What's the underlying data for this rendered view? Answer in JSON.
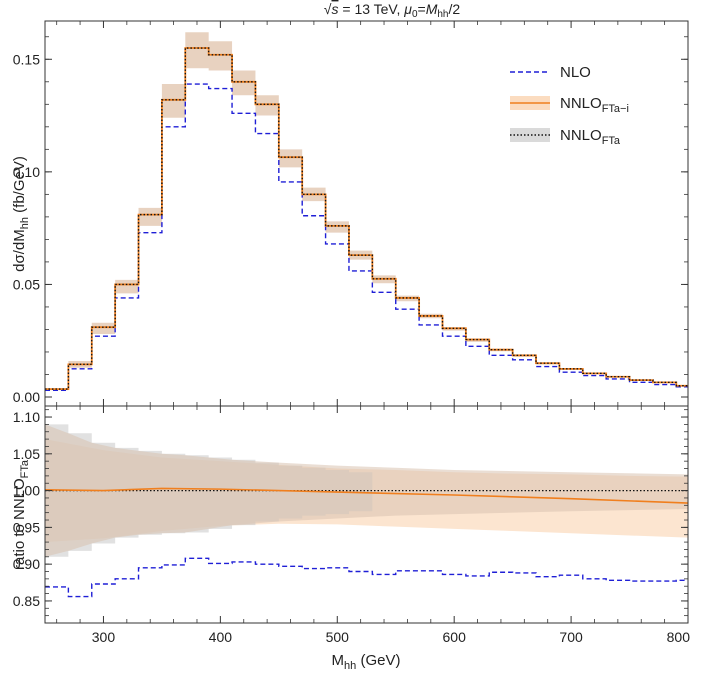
{
  "chart_data": [
    {
      "type": "line",
      "panel": "main",
      "title_parts": {
        "prefix": "√",
        "s": "s",
        "eq": " = 13 TeV, ",
        "mu": "μ",
        "mu_sub": "0",
        "eq2": "=",
        "M": "M",
        "M_sub": "hh",
        "rest": "/2"
      },
      "xlabel": "",
      "ylabel_parts": {
        "main": "dσ/dM",
        "sub": "hh",
        "rest": " (fb/GeV)"
      },
      "xlim": [
        250,
        800
      ],
      "ylim": [
        -0.004,
        0.167
      ],
      "y_ticks": [
        "0.00",
        "0.05",
        "0.10",
        "0.15"
      ],
      "bin_edges": [
        250,
        270,
        290,
        310,
        330,
        350,
        370,
        390,
        410,
        430,
        450,
        470,
        490,
        510,
        530,
        550,
        570,
        590,
        610,
        630,
        650,
        670,
        690,
        710,
        730,
        750,
        770,
        790,
        800
      ],
      "series": [
        {
          "name": "NLO",
          "values": [
            0.003,
            0.0125,
            0.027,
            0.044,
            0.073,
            0.12,
            0.139,
            0.137,
            0.126,
            0.117,
            0.0955,
            0.0805,
            0.068,
            0.056,
            0.0465,
            0.039,
            0.032,
            0.027,
            0.0225,
            0.0185,
            0.0165,
            0.0135,
            0.011,
            0.0095,
            0.008,
            0.0065,
            0.0055,
            0.0045
          ]
        },
        {
          "name": "NNLO_FTa-i",
          "values": [
            0.0035,
            0.0145,
            0.031,
            0.05,
            0.081,
            0.132,
            0.155,
            0.152,
            0.14,
            0.13,
            0.1065,
            0.09,
            0.076,
            0.063,
            0.0525,
            0.044,
            0.036,
            0.0305,
            0.0255,
            0.021,
            0.0185,
            0.015,
            0.0125,
            0.0105,
            0.009,
            0.0075,
            0.0065,
            0.005
          ],
          "band_lo": [
            0.003,
            0.013,
            0.028,
            0.046,
            0.076,
            0.124,
            0.146,
            0.145,
            0.134,
            0.125,
            0.102,
            0.087,
            0.073,
            0.061,
            0.0505,
            0.0425,
            0.035,
            0.0295,
            0.0245,
            0.0203,
            0.0178,
            0.0145,
            0.012,
            0.0101,
            0.0087,
            0.0072,
            0.0062,
            0.0048
          ],
          "band_hi": [
            0.004,
            0.016,
            0.033,
            0.052,
            0.084,
            0.139,
            0.162,
            0.158,
            0.145,
            0.134,
            0.11,
            0.093,
            0.078,
            0.065,
            0.054,
            0.045,
            0.037,
            0.031,
            0.026,
            0.0215,
            0.019,
            0.0155,
            0.0128,
            0.0108,
            0.0092,
            0.0077,
            0.0067,
            0.0052
          ]
        },
        {
          "name": "NNLO_FTa",
          "values": [
            0.0035,
            0.0145,
            0.031,
            0.05,
            0.081,
            0.132,
            0.155,
            0.152,
            0.14,
            0.13,
            0.1065,
            0.09,
            0.076,
            0.063,
            0.0525,
            0.044,
            0.036,
            0.0305,
            0.0255,
            0.021,
            0.0185,
            0.015,
            0.0125,
            0.0105,
            0.009,
            0.0075,
            0.0065,
            0.005
          ]
        }
      ],
      "legend": {
        "placement": "top-right",
        "entries": [
          {
            "label": "NLO",
            "sub": "",
            "color": "#1f1fd6",
            "style": "dashed"
          },
          {
            "label": "NNLO",
            "sub": "FTa−i",
            "color": "#f07f1e",
            "style": "solid-band",
            "band_color": "#fbdcc0"
          },
          {
            "label": "NNLO",
            "sub": "FTa",
            "color": "#111111",
            "style": "dotted-band",
            "band_color": "#dadada"
          }
        ]
      }
    },
    {
      "type": "line",
      "panel": "ratio",
      "xlabel_parts": {
        "main": "M",
        "sub": "hh",
        "rest": " (GeV)"
      },
      "ylabel_parts": {
        "main": "ratio to NNLO",
        "sub": "FTa",
        "rest": ""
      },
      "xlim": [
        250,
        800
      ],
      "ylim": [
        0.82,
        1.115
      ],
      "x_ticks": [
        "300",
        "400",
        "500",
        "600",
        "700",
        "800"
      ],
      "y_ticks": [
        "0.85",
        "0.90",
        "0.95",
        "1.00",
        "1.05",
        "1.10"
      ],
      "ratio_nlo_edges": [
        250,
        270,
        290,
        310,
        330,
        350,
        370,
        390,
        410,
        430,
        450,
        470,
        490,
        510,
        530,
        550,
        570,
        590,
        610,
        630,
        650,
        670,
        690,
        710,
        730,
        750,
        770,
        790,
        800
      ],
      "ratio_nlo": [
        0.869,
        0.856,
        0.873,
        0.88,
        0.895,
        0.899,
        0.908,
        0.901,
        0.903,
        0.9,
        0.897,
        0.894,
        0.895,
        0.89,
        0.886,
        0.891,
        0.891,
        0.886,
        0.884,
        0.889,
        0.888,
        0.883,
        0.885,
        0.88,
        0.878,
        0.877,
        0.877,
        0.878
      ],
      "ratio_ftai": {
        "x": [
          250,
          300,
          350,
          400,
          500,
          600,
          700,
          800
        ],
        "y": [
          1.001,
          1.0,
          1.003,
          1.002,
          0.998,
          0.994,
          0.989,
          0.983
        ]
      },
      "ratio_ftai_band_lo": {
        "x": [
          250,
          300,
          350,
          400,
          450,
          500,
          550,
          600,
          650,
          700,
          750,
          800
        ],
        "y": [
          0.93,
          0.935,
          0.945,
          0.952,
          0.955,
          0.954,
          0.951,
          0.948,
          0.945,
          0.942,
          0.939,
          0.936
        ]
      },
      "ratio_ftai_band_hi": {
        "x": [
          250,
          300,
          350,
          400,
          450,
          500,
          550,
          600,
          650,
          700,
          750,
          800
        ],
        "y": [
          1.07,
          1.055,
          1.045,
          1.04,
          1.035,
          1.03,
          1.028,
          1.025,
          1.023,
          1.022,
          1.02,
          1.019
        ]
      },
      "ratio_fta_band_lo": {
        "x": [
          250,
          270,
          290,
          310,
          330,
          350,
          370,
          390,
          410,
          450,
          500,
          550,
          600,
          700,
          800
        ],
        "y": [
          0.91,
          0.918,
          0.928,
          0.936,
          0.94,
          0.942,
          0.943,
          0.948,
          0.953,
          0.958,
          0.962,
          0.966,
          0.968,
          0.972,
          0.975
        ]
      },
      "ratio_fta_band_hi": {
        "x": [
          250,
          270,
          290,
          310,
          330,
          350,
          370,
          390,
          410,
          450,
          500,
          550,
          600,
          700,
          800
        ],
        "y": [
          1.09,
          1.078,
          1.065,
          1.058,
          1.054,
          1.05,
          1.048,
          1.045,
          1.042,
          1.038,
          1.034,
          1.031,
          1.028,
          1.025,
          1.022
        ]
      },
      "reference_line": 1.0
    }
  ]
}
